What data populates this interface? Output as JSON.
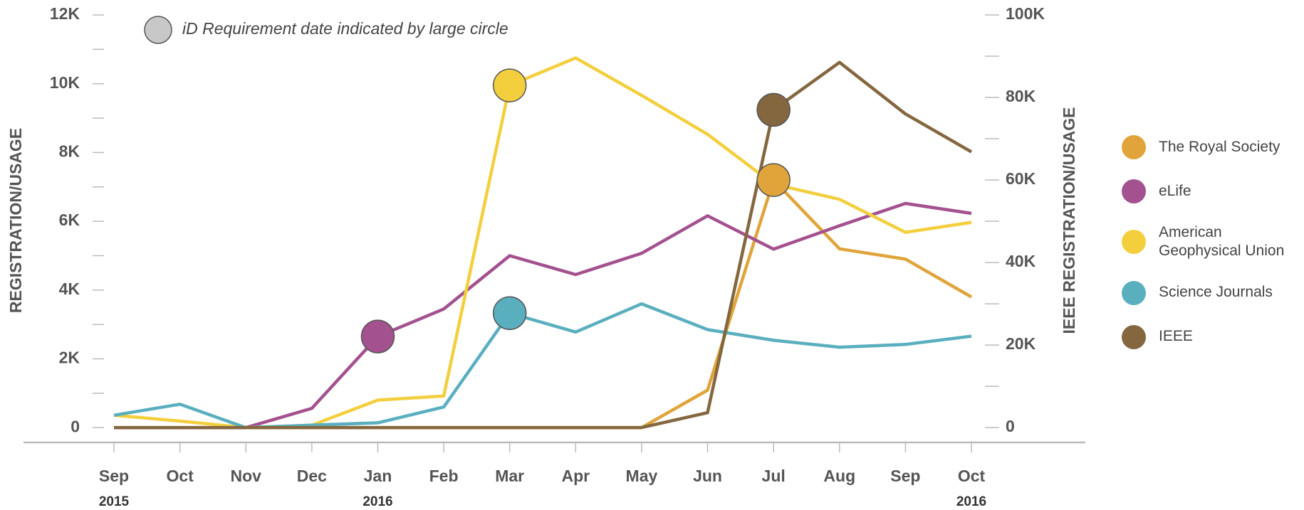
{
  "chart_data": {
    "type": "line",
    "annotation": "iD Requirement date indicated by large circle",
    "ylabel": "REGISTRATION/USAGE",
    "y2label": "IEEE REGISTRATION/USAGE",
    "categories": [
      "Sep",
      "Oct",
      "Nov",
      "Dec",
      "Jan",
      "Feb",
      "Mar",
      "Apr",
      "May",
      "Jun",
      "Jul",
      "Aug",
      "Sep",
      "Oct"
    ],
    "category_years": [
      "2015",
      null,
      null,
      null,
      "2016",
      null,
      null,
      null,
      null,
      null,
      null,
      null,
      null,
      "2016"
    ],
    "ylim": [
      -430,
      12000
    ],
    "yticks": [
      0,
      {
        "value": 2000,
        "label": "2K"
      },
      {
        "value": 4000,
        "label": "4K"
      },
      {
        "value": 6000,
        "label": "6K"
      },
      {
        "value": 8000,
        "label": "8K"
      },
      {
        "value": 10000,
        "label": "10K"
      },
      {
        "value": 12000,
        "label": "12K"
      }
    ],
    "yminor_ticks": [
      1000,
      3000,
      5000,
      7000,
      9000,
      11000
    ],
    "y2lim": [
      -3600,
      100000
    ],
    "y2ticks": [
      0,
      {
        "value": 20000,
        "label": "20K"
      },
      {
        "value": 40000,
        "label": "40K"
      },
      {
        "value": 60000,
        "label": "60K"
      },
      {
        "value": 80000,
        "label": "80K"
      },
      {
        "value": 100000,
        "label": "100K"
      }
    ],
    "y2minor_ticks": [
      10000,
      30000,
      50000,
      70000,
      90000
    ],
    "legend": "right",
    "series": [
      {
        "name": "The Royal Society",
        "color": "#e0a43a",
        "highlight": 10,
        "values": [
          0,
          0,
          0,
          0,
          0,
          0,
          0,
          0,
          0,
          1090,
          7200,
          5200,
          4900,
          3800
        ]
      },
      {
        "name": "eLife",
        "color": "#a3518f",
        "highlight": 4,
        "values": [
          0,
          0,
          0,
          560,
          2650,
          3450,
          5000,
          4450,
          5070,
          6160,
          5190,
          5870,
          6520,
          6230
        ]
      },
      {
        "name": "American Geophysical Union",
        "color": "#f3cf3e",
        "highlight": 6,
        "values": [
          360,
          190,
          0,
          70,
          800,
          920,
          9950,
          10750,
          9660,
          8530,
          7080,
          6640,
          5680,
          5970
        ]
      },
      {
        "name": "Science Journals",
        "color": "#5aafbf",
        "highlight": 6,
        "values": [
          360,
          680,
          0,
          70,
          140,
          600,
          3330,
          2780,
          3600,
          2850,
          2540,
          2340,
          2420,
          2660
        ]
      },
      {
        "name": "IEEE",
        "color": "#84673f",
        "highlight": 10,
        "axis": "y2",
        "values": [
          0,
          0,
          0,
          0,
          0,
          0,
          0,
          0,
          0,
          3600,
          77000,
          88500,
          76000,
          66800
        ]
      }
    ]
  }
}
